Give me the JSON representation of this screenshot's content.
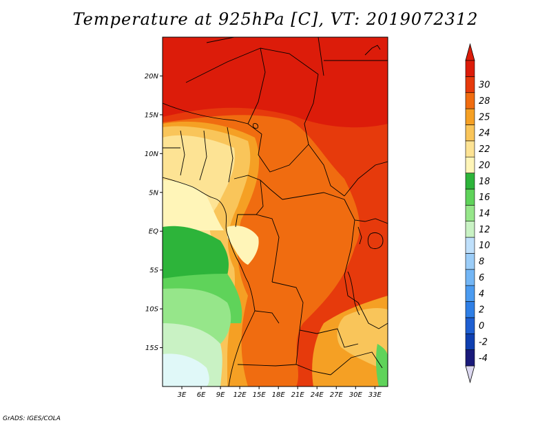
{
  "title": "Temperature at 925hPa [C], VT: 2019072312",
  "footer": "GrADS: IGES/COLA",
  "map": {
    "lon_range": [
      0,
      35
    ],
    "lat_range": [
      -20,
      25
    ],
    "lat_ticks": [
      {
        "value": 20,
        "label": "20N"
      },
      {
        "value": 15,
        "label": "15N"
      },
      {
        "value": 10,
        "label": "10N"
      },
      {
        "value": 5,
        "label": "5N"
      },
      {
        "value": 0,
        "label": "EQ"
      },
      {
        "value": -5,
        "label": "5S"
      },
      {
        "value": -10,
        "label": "10S"
      },
      {
        "value": -15,
        "label": "15S"
      }
    ],
    "lon_ticks": [
      {
        "value": 3,
        "label": "3E"
      },
      {
        "value": 6,
        "label": "6E"
      },
      {
        "value": 9,
        "label": "9E"
      },
      {
        "value": 12,
        "label": "12E"
      },
      {
        "value": 15,
        "label": "15E"
      },
      {
        "value": 18,
        "label": "18E"
      },
      {
        "value": 21,
        "label": "21E"
      },
      {
        "value": 24,
        "label": "24E"
      },
      {
        "value": 27,
        "label": "27E"
      },
      {
        "value": 30,
        "label": "30E"
      },
      {
        "value": 33,
        "label": "33E"
      }
    ]
  },
  "colorbar": {
    "levels": [
      "-4",
      "-2",
      "0",
      "2",
      "4",
      "6",
      "8",
      "10",
      "12",
      "14",
      "16",
      "18",
      "20",
      "22",
      "24",
      "25",
      "28",
      "30"
    ],
    "colors": [
      "#1a1a7a",
      "#0f3fb0",
      "#1e5fd2",
      "#2f7fe6",
      "#4b9bf0",
      "#73b6f5",
      "#9bcdf8",
      "#bfe0fb",
      "#c9f2c4",
      "#96e68a",
      "#5fd35a",
      "#2db43a",
      "#fff5b8",
      "#fde394",
      "#f9c55a",
      "#f5a024",
      "#f06c10",
      "#e63a0c",
      "#dc1c0a"
    ],
    "under_color": "#dcd8f0",
    "over_color": "#dc1c0a"
  }
}
